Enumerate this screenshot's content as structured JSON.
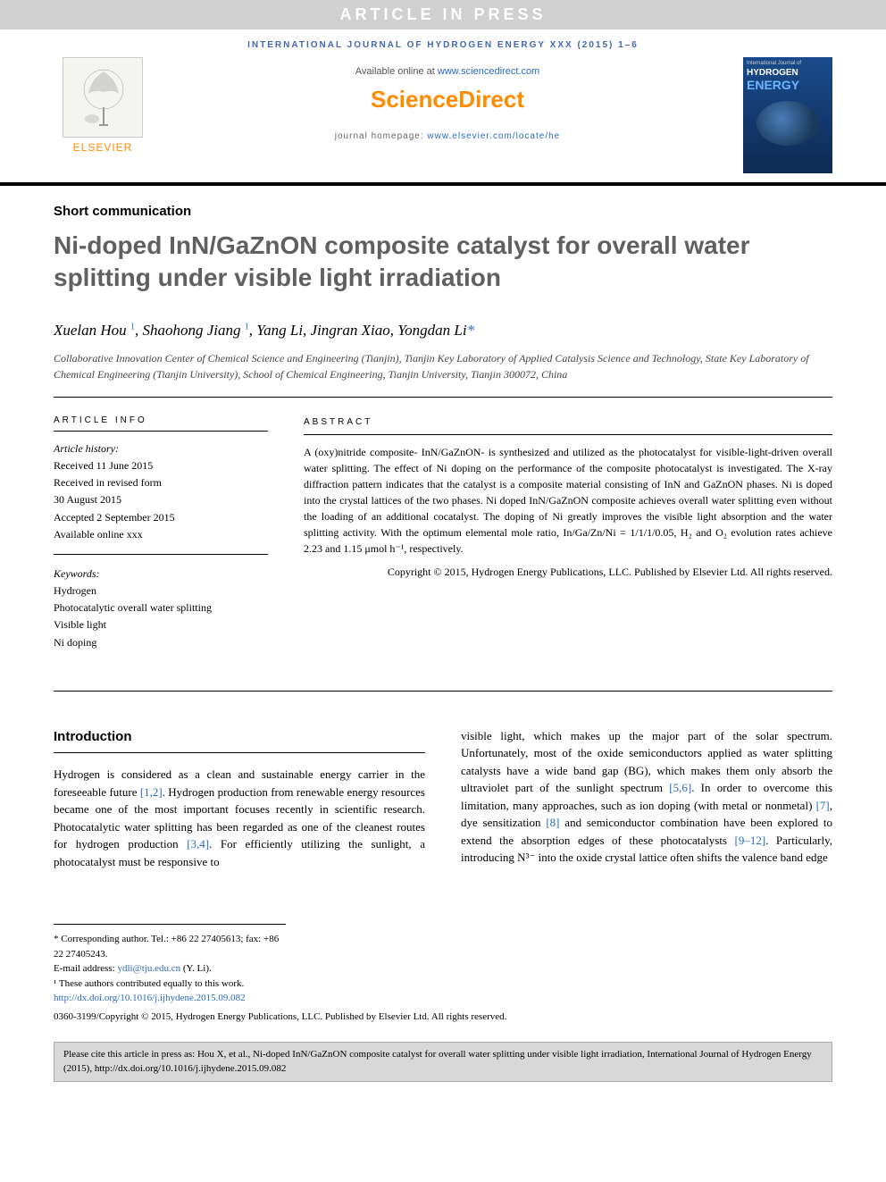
{
  "press_banner": "ARTICLE IN PRESS",
  "journal_header": "INTERNATIONAL JOURNAL OF HYDROGEN ENERGY XXX (2015) 1–6",
  "elsevier_label": "ELSEVIER",
  "available_prefix": "Available online at ",
  "available_url": "www.sciencedirect.com",
  "sd_logo": "ScienceDirect",
  "homepage_prefix": "journal homepage: ",
  "homepage_url": "www.elsevier.com/locate/he",
  "cover": {
    "journal_line": "International Journal of",
    "title1": "HYDROGEN",
    "title2": "ENERGY"
  },
  "article_type": "Short communication",
  "title": "Ni-doped InN/GaZnON composite catalyst for overall water splitting under visible light irradiation",
  "authors_html": "Xuelan Hou <sup>1</sup>, Shaohong Jiang <sup>1</sup>, Yang Li, Jingran Xiao, Yongdan Li<span class='corr'>*</span>",
  "affiliation": "Collaborative Innovation Center of Chemical Science and Engineering (Tianjin), Tianjin Key Laboratory of Applied Catalysis Science and Technology, State Key Laboratory of Chemical Engineering (Tianjin University), School of Chemical Engineering, Tianjin University, Tianjin 300072, China",
  "info": {
    "heading": "ARTICLE INFO",
    "history_label": "Article history:",
    "received": "Received 11 June 2015",
    "revised1": "Received in revised form",
    "revised2": "30 August 2015",
    "accepted": "Accepted 2 September 2015",
    "available": "Available online xxx",
    "keywords_label": "Keywords:",
    "kw1": "Hydrogen",
    "kw2": "Photocatalytic overall water splitting",
    "kw3": "Visible light",
    "kw4": "Ni doping"
  },
  "abstract": {
    "heading": "ABSTRACT",
    "text": "A (oxy)nitride composite- InN/GaZnON- is synthesized and utilized as the photocatalyst for visible-light-driven overall water splitting. The effect of Ni doping on the performance of the composite photocatalyst is investigated. The X-ray diffraction pattern indicates that the catalyst is a composite material consisting of InN and GaZnON phases. Ni is doped into the crystal lattices of the two phases. Ni doped InN/GaZnON composite achieves overall water splitting even without the loading of an additional cocatalyst. The doping of Ni greatly improves the visible light absorption and the water splitting activity. With the optimum elemental mole ratio, In/Ga/Zn/Ni = 1/1/1/0.05, H₂ and O₂ evolution rates achieve 2.23 and 1.15 μmol h⁻¹, respectively.",
    "copyright": "Copyright © 2015, Hydrogen Energy Publications, LLC. Published by Elsevier Ltd. All rights reserved."
  },
  "intro": {
    "heading": "Introduction",
    "col1": "Hydrogen is considered as a clean and sustainable energy carrier in the foreseeable future [1,2]. Hydrogen production from renewable energy resources became one of the most important focuses recently in scientific research. Photocatalytic water splitting has been regarded as one of the cleanest routes for hydrogen production [3,4]. For efficiently utilizing the sunlight, a photocatalyst must be responsive to",
    "col2": "visible light, which makes up the major part of the solar spectrum. Unfortunately, most of the oxide semiconductors applied as water splitting catalysts have a wide band gap (BG), which makes them only absorb the ultraviolet part of the sunlight spectrum [5,6]. In order to overcome this limitation, many approaches, such as ion doping (with metal or nonmetal) [7], dye sensitization [8] and semiconductor combination have been explored to extend the absorption edges of these photocatalysts [9–12]. Particularly, introducing N³⁻ into the oxide crystal lattice often shifts the valence band edge"
  },
  "footnotes": {
    "corr": "* Corresponding author. Tel.: +86 22 27405613; fax: +86 22 27405243.",
    "email_label": "E-mail address: ",
    "email": "ydli@tju.edu.cn",
    "email_suffix": " (Y. Li).",
    "equal": "¹ These authors contributed equally to this work."
  },
  "doi": "http://dx.doi.org/10.1016/j.ijhydene.2015.09.082",
  "copyright_footer": "0360-3199/Copyright © 2015, Hydrogen Energy Publications, LLC. Published by Elsevier Ltd. All rights reserved.",
  "cite_box": "Please cite this article in press as: Hou X, et al., Ni-doped InN/GaZnON composite catalyst for overall water splitting under visible light irradiation, International Journal of Hydrogen Energy (2015), http://dx.doi.org/10.1016/j.ijhydene.2015.09.082",
  "refs": {
    "r12": "[1,2]",
    "r34": "[3,4]",
    "r56": "[5,6]",
    "r7": "[7]",
    "r8": "[8]",
    "r912": "[9–12]"
  },
  "colors": {
    "link": "#2a6cc2",
    "title_gray": "#606060",
    "orange": "#ff8c00",
    "banner_bg": "#d0d0d0",
    "cite_bg": "#d8d8d8"
  }
}
